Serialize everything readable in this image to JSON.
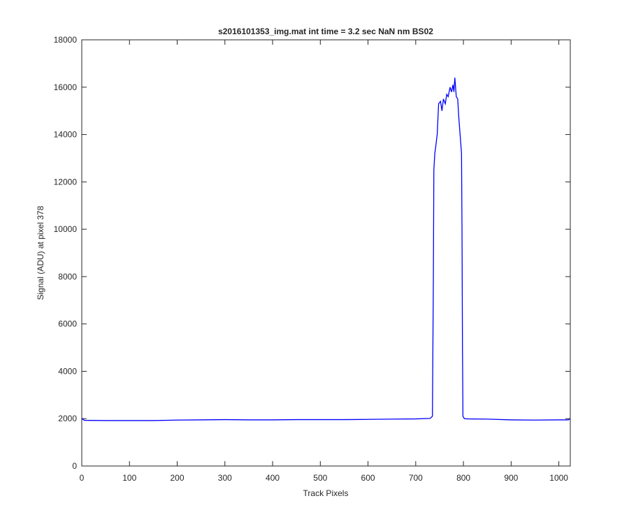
{
  "chart_data": {
    "type": "line",
    "title": "s2016101353_img.mat int time = 3.2 sec  NaN nm BS02",
    "x_label": "Track Pixels",
    "y_label": "Signal (ADU) at pixel 378",
    "x": [
      0,
      2,
      5,
      50,
      100,
      150,
      200,
      250,
      300,
      350,
      400,
      450,
      500,
      550,
      600,
      650,
      700,
      730,
      735,
      737,
      738,
      740,
      742,
      745,
      748,
      752,
      755,
      758,
      762,
      765,
      768,
      772,
      775,
      778,
      780,
      782,
      785,
      788,
      790,
      793,
      796,
      797,
      798,
      799,
      802,
      810,
      850,
      900,
      950,
      1000,
      1020,
      1024
    ],
    "values": [
      1950,
      2000,
      1930,
      1920,
      1920,
      1920,
      1940,
      1950,
      1960,
      1950,
      1950,
      1960,
      1960,
      1960,
      1970,
      1980,
      1990,
      2010,
      2100,
      8000,
      12500,
      13200,
      13500,
      14000,
      15300,
      15400,
      15000,
      15500,
      15300,
      15700,
      15600,
      16000,
      15800,
      16100,
      15800,
      16400,
      15600,
      15500,
      14800,
      14000,
      13200,
      10000,
      5000,
      2100,
      2000,
      1990,
      1980,
      1950,
      1940,
      1950,
      1950,
      2000
    ],
    "color": "#0000ff",
    "xlim": [
      0,
      1024
    ],
    "ylim": [
      0,
      18000
    ],
    "xticks": [
      0,
      100,
      200,
      300,
      400,
      500,
      600,
      700,
      800,
      900,
      1000
    ],
    "yticks": [
      0,
      2000,
      4000,
      6000,
      8000,
      10000,
      12000,
      14000,
      16000,
      18000
    ]
  }
}
